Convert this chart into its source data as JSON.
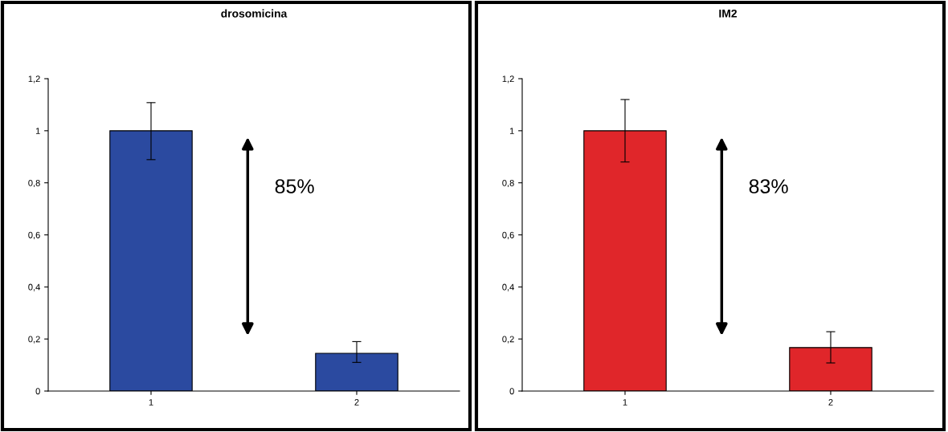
{
  "chart_data": [
    {
      "type": "bar",
      "title": "drosomicina",
      "categories": [
        "1",
        "2"
      ],
      "values": [
        1,
        0.145
      ],
      "errors": [
        [
          0.889,
          1.108
        ],
        [
          0.11,
          0.19
        ]
      ],
      "color": "#2b4aa0",
      "ylim": [
        0,
        1.2
      ],
      "yticks": [
        {
          "value": 0,
          "label": "0"
        },
        {
          "value": 0.2,
          "label": "0,2"
        },
        {
          "value": 0.4,
          "label": "0,4"
        },
        {
          "value": 0.6,
          "label": "0,6"
        },
        {
          "value": 0.8,
          "label": "0,8"
        },
        {
          "value": 1,
          "label": "1"
        },
        {
          "value": 1.2,
          "label": "1,2"
        }
      ],
      "annotations": [
        "85%"
      ],
      "grid": false,
      "legend": false
    },
    {
      "type": "bar",
      "title": "IM2",
      "categories": [
        "1",
        "2"
      ],
      "values": [
        1,
        0.167
      ],
      "errors": [
        [
          0.88,
          1.12
        ],
        [
          0.108,
          0.228
        ]
      ],
      "color": "#e0262a",
      "ylim": [
        0,
        1.2
      ],
      "yticks": [
        {
          "value": 0,
          "label": "0"
        },
        {
          "value": 0.2,
          "label": "0,2"
        },
        {
          "value": 0.4,
          "label": "0,4"
        },
        {
          "value": 0.6,
          "label": "0,6"
        },
        {
          "value": 0.8,
          "label": "0,8"
        },
        {
          "value": 1,
          "label": "1"
        },
        {
          "value": 1.2,
          "label": "1,2"
        }
      ],
      "annotations": [
        "83%"
      ],
      "grid": false,
      "legend": false
    }
  ]
}
